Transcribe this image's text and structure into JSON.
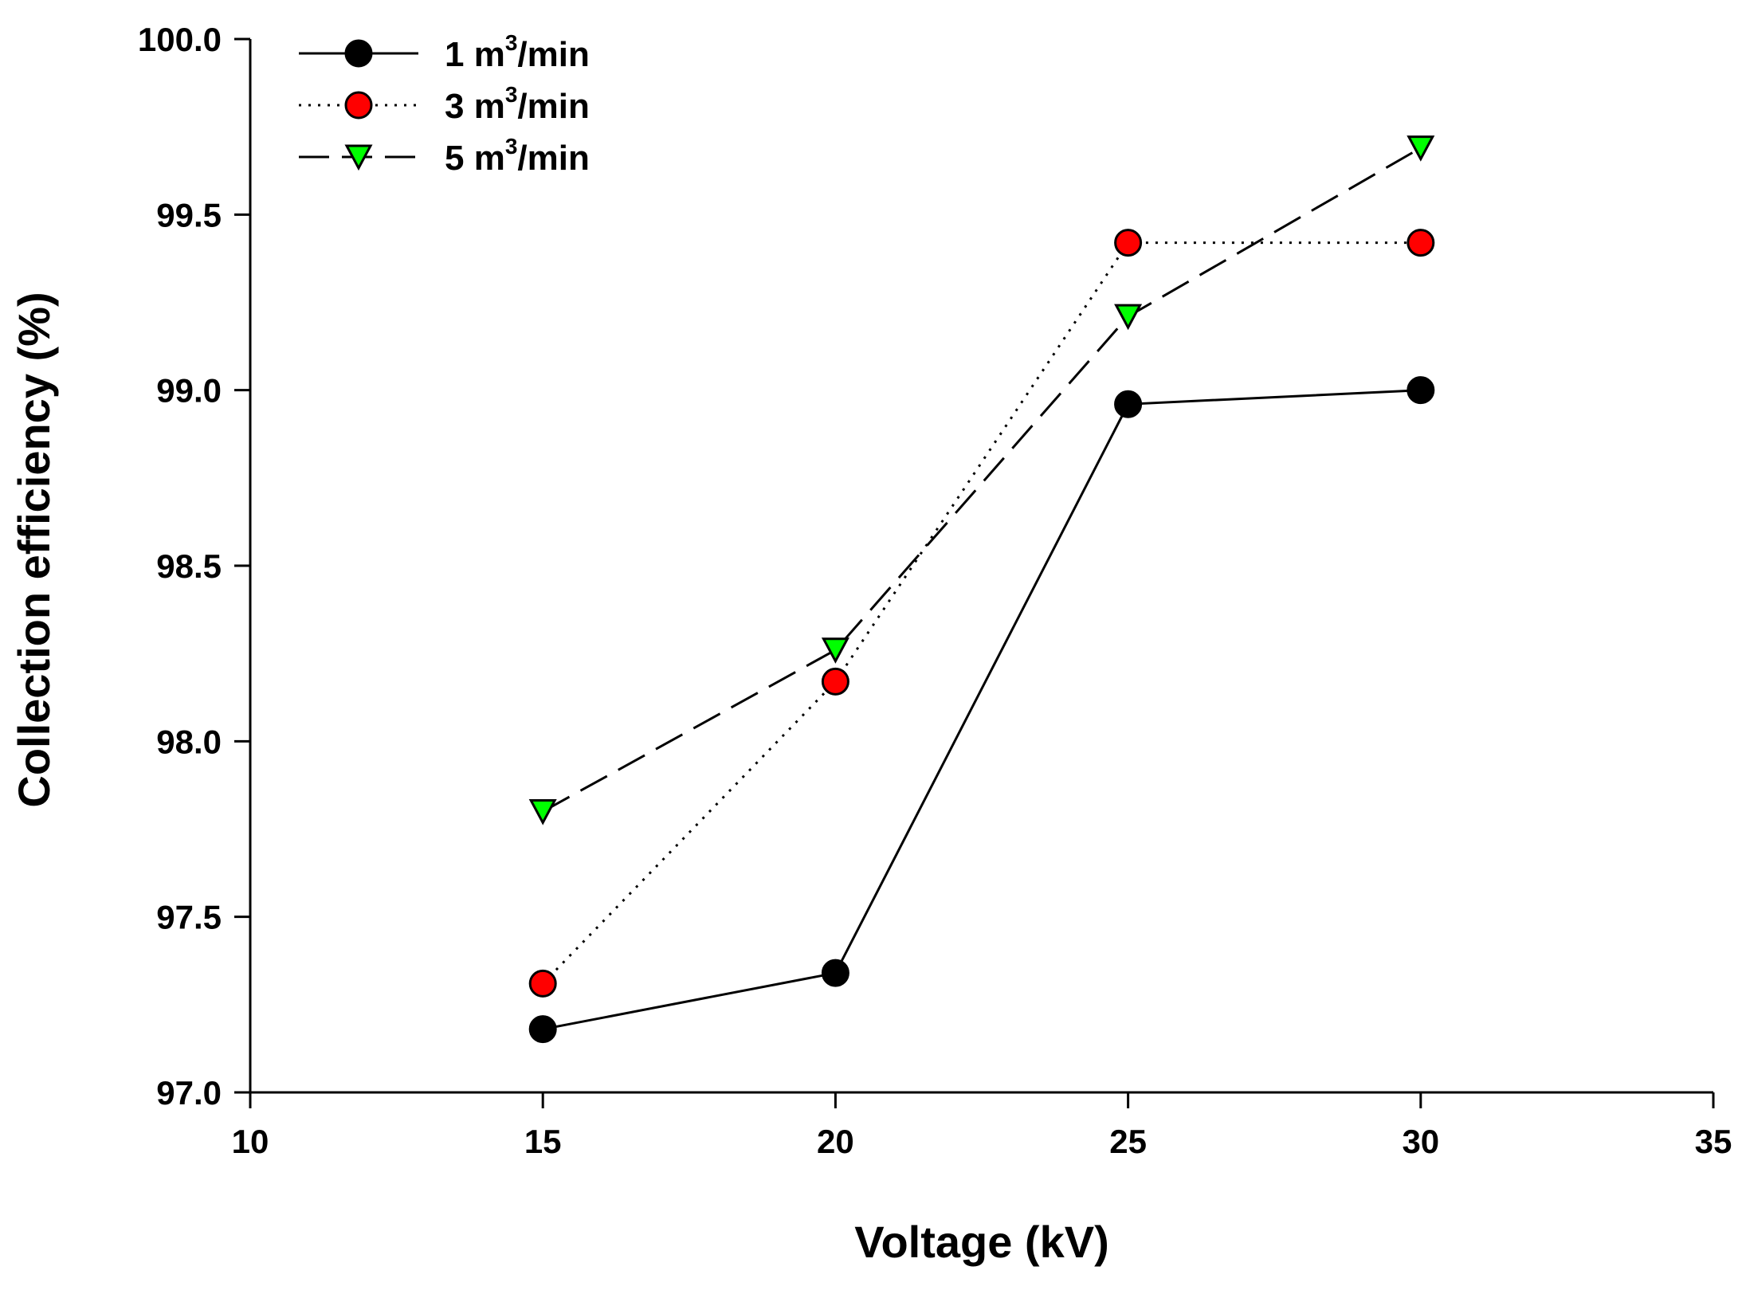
{
  "chart_data": {
    "type": "line",
    "title": "",
    "xlabel": "Voltage (kV)",
    "ylabel": "Collection efficiency (%)",
    "xlim": [
      10,
      35
    ],
    "ylim": [
      97.0,
      100.0
    ],
    "x_ticks": [
      "10",
      "15",
      "20",
      "25",
      "30",
      "35"
    ],
    "y_ticks": [
      "97.0",
      "97.5",
      "98.0",
      "98.5",
      "99.0",
      "99.5",
      "100.0"
    ],
    "grid": false,
    "legend_position": "top-left",
    "x": [
      15,
      20,
      25,
      30
    ],
    "series": [
      {
        "name": "1 m3/min",
        "label_main": "1 m",
        "label_sup": "3",
        "label_tail": "/min",
        "values": [
          97.18,
          97.34,
          98.96,
          99.0
        ],
        "line_style": "solid",
        "marker": "circle",
        "marker_color": "#000000"
      },
      {
        "name": "3 m3/min",
        "label_main": "3 m",
        "label_sup": "3",
        "label_tail": "/min",
        "values": [
          97.31,
          98.17,
          99.42,
          99.42
        ],
        "line_style": "dotted",
        "marker": "circle",
        "marker_color": "#ff0000"
      },
      {
        "name": "5 m3/min",
        "label_main": "5 m",
        "label_sup": "3",
        "label_tail": "/min",
        "values": [
          97.8,
          98.26,
          99.21,
          99.69
        ],
        "line_style": "dashed",
        "marker": "triangle-down",
        "marker_color": "#00ff00"
      }
    ]
  }
}
